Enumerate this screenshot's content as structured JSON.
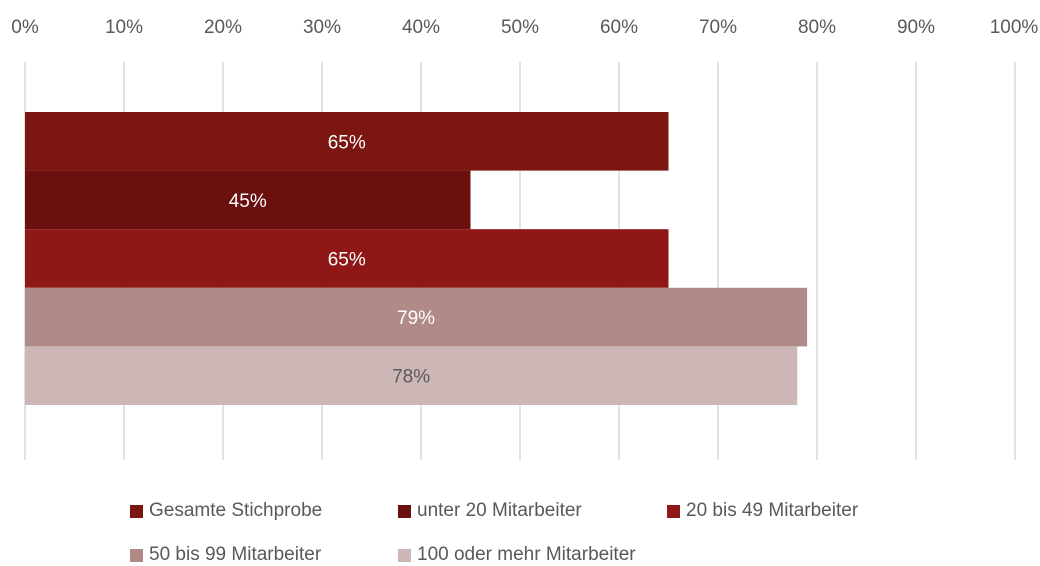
{
  "chart_data": {
    "type": "bar",
    "orientation": "horizontal",
    "x_ticks": [
      "0%",
      "10%",
      "20%",
      "30%",
      "40%",
      "50%",
      "60%",
      "70%",
      "80%",
      "90%",
      "100%"
    ],
    "xlim": [
      0,
      100
    ],
    "grid": true,
    "legend_position": "bottom",
    "series": [
      {
        "name": "Gesamte Stichprobe",
        "value": 65,
        "label": "65%",
        "color": "#7b1611",
        "label_color": "#ffffff"
      },
      {
        "name": "unter 20 Mitarbeiter",
        "value": 45,
        "label": "45%",
        "color": "#6a100e",
        "label_color": "#ffffff"
      },
      {
        "name": "20 bis 49 Mitarbeiter",
        "value": 65,
        "label": "65%",
        "color": "#8f1816",
        "label_color": "#ffffff"
      },
      {
        "name": "50 bis 99 Mitarbeiter",
        "value": 79,
        "label": "79%",
        "color": "#b08a86",
        "label_color": "#ffffff"
      },
      {
        "name": "100 oder mehr Mitarbeiter",
        "value": 78,
        "label": "78%",
        "color": "#ccb7b6",
        "label_color": "#5a5a5a"
      }
    ]
  }
}
